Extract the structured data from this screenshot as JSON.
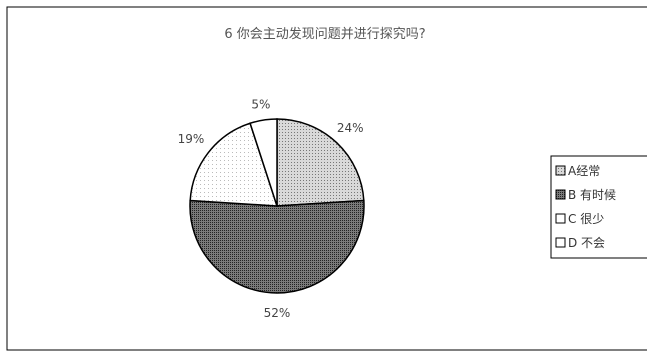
{
  "chart_data": {
    "type": "pie",
    "title": "6 你会主动发现问题并进行探究吗?",
    "categories": [
      "A经常",
      "B 有时候",
      "C 很少",
      "D 不会"
    ],
    "values": [
      24,
      52,
      19,
      5
    ],
    "data_labels": [
      "24%",
      "52%",
      "19%",
      "5%"
    ],
    "legend": [
      "A经常",
      "B 有时候",
      "C 很少",
      "D 不会"
    ],
    "legend_position": "right",
    "colors": [
      "#b3b3b3",
      "#5a5a5a",
      "#f2f2f2",
      "#fafafa"
    ],
    "start_angle": "12 o'clock",
    "direction": "clockwise"
  }
}
